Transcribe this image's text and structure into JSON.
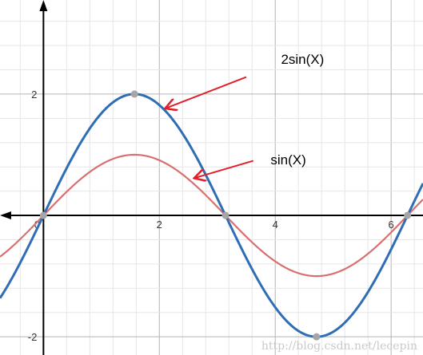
{
  "chart_data": {
    "type": "line",
    "xlim": [
      -0.75,
      6.55
    ],
    "ylim": [
      -2.3,
      3.55
    ],
    "grid": true,
    "minor_step": 0.4,
    "major_step": 2,
    "x_ticks": [
      {
        "value": 0,
        "label": "0"
      },
      {
        "value": 2,
        "label": "2"
      },
      {
        "value": 4,
        "label": "4"
      },
      {
        "value": 6,
        "label": "6"
      }
    ],
    "y_ticks": [
      {
        "value": 2,
        "label": "2"
      },
      {
        "value": -2,
        "label": "-2"
      }
    ],
    "series": [
      {
        "function": "sin",
        "amplitude": 1,
        "color": "#d97070",
        "line_width": 2.2
      },
      {
        "function": "sin",
        "amplitude": 2,
        "color": "#2f6db4",
        "line_width": 3
      }
    ],
    "points": [
      {
        "x": 0,
        "y": 0
      },
      {
        "x": 1.5708,
        "y": 2
      },
      {
        "x": 3.1416,
        "y": 0
      },
      {
        "x": 4.7124,
        "y": -2
      },
      {
        "x": 6.2832,
        "y": 0
      }
    ],
    "annotations": [
      {
        "text": "2sin(X)",
        "text_x": 4.1,
        "text_y": 2.5,
        "arrow_from": [
          3.5,
          2.28
        ],
        "arrow_to": [
          2.12,
          1.77
        ]
      },
      {
        "text": "sin(X)",
        "text_x": 3.92,
        "text_y": 0.84,
        "arrow_from": [
          3.62,
          0.9
        ],
        "arrow_to": [
          2.62,
          0.62
        ]
      }
    ]
  },
  "watermark": "http://blog.csdn.net/lecepin",
  "colors": {
    "grid_minor": "#e6e6e6",
    "grid_major": "#b3b3b3",
    "axis": "#000000",
    "point": "#a6a6a6",
    "annotation_arrow": "#e0202a"
  }
}
